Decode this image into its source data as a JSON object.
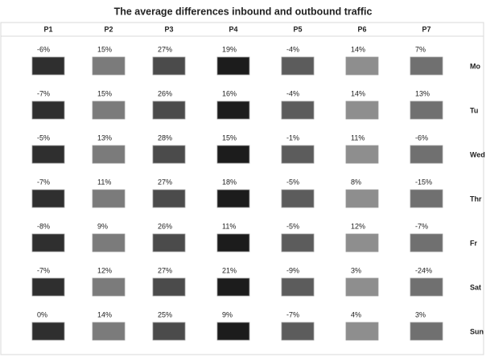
{
  "chart_data": {
    "type": "grid",
    "title": "The average differences inbound and outbound traffic",
    "categories": [
      "P1",
      "P2",
      "P3",
      "P4",
      "P5",
      "P6",
      "P7"
    ],
    "colors": [
      "#2f2f2f",
      "#7b7b7b",
      "#4b4b4b",
      "#1c1c1c",
      "#5c5c5c",
      "#8e8e8e",
      "#707070"
    ],
    "series": [
      {
        "name": "Mo",
        "values": [
          -6,
          15,
          27,
          19,
          -4,
          14,
          7
        ],
        "value_labels": [
          "-6%",
          "15%",
          "27%",
          "19%",
          "-4%",
          "14%",
          "7%"
        ]
      },
      {
        "name": "Tu",
        "values": [
          -7,
          15,
          26,
          16,
          -4,
          14,
          13
        ],
        "value_labels": [
          "-7%",
          "15%",
          "26%",
          "16%",
          "-4%",
          "14%",
          "13%"
        ]
      },
      {
        "name": "Wed",
        "values": [
          -5,
          13,
          28,
          15,
          -1,
          11,
          -6
        ],
        "value_labels": [
          "-5%",
          "13%",
          "28%",
          "15%",
          "-1%",
          "11%",
          "-6%"
        ]
      },
      {
        "name": "Thr",
        "values": [
          -7,
          11,
          27,
          18,
          -5,
          8,
          -15
        ],
        "value_labels": [
          "-7%",
          "11%",
          "27%",
          "18%",
          "-5%",
          "8%",
          "-15%"
        ]
      },
      {
        "name": "Fr",
        "values": [
          -8,
          9,
          26,
          11,
          -5,
          12,
          -7
        ],
        "value_labels": [
          "-8%",
          "9%",
          "26%",
          "11%",
          "-5%",
          "12%",
          "-7%"
        ]
      },
      {
        "name": "Sat",
        "values": [
          -7,
          12,
          27,
          21,
          -9,
          3,
          -24
        ],
        "value_labels": [
          "-7%",
          "12%",
          "27%",
          "21%",
          "-9%",
          "3%",
          "-24%"
        ]
      },
      {
        "name": "Sun",
        "values": [
          0,
          14,
          25,
          9,
          -7,
          4,
          3
        ],
        "value_labels": [
          "0%",
          "14%",
          "25%",
          "9%",
          "-7%",
          "4%",
          "3%"
        ]
      }
    ]
  }
}
